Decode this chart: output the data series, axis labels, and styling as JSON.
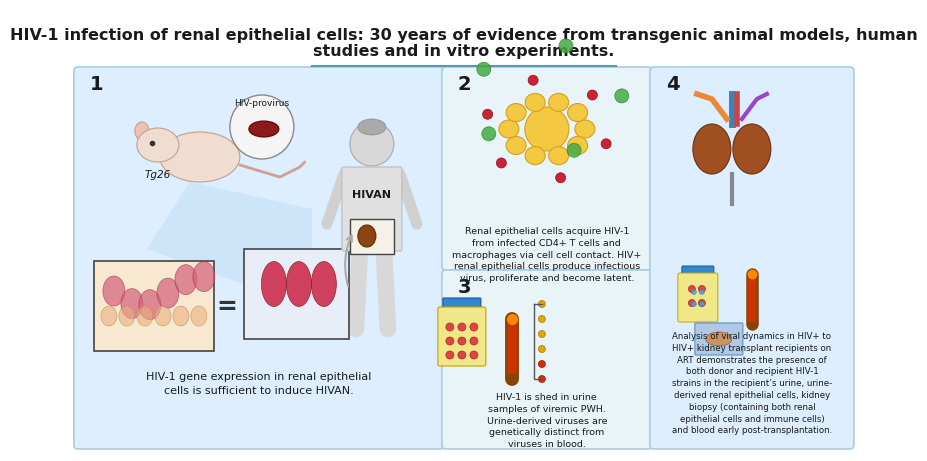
{
  "title_line1": "HIV-1 infection of renal epithelial cells: 30 years of evidence from transgenic animal models, human",
  "title_line2": "studies and in vitro experiments.",
  "title_fontsize": 11.5,
  "title_fontweight": "bold",
  "bg_color": "#ffffff",
  "panel1_bg": "#dceeff",
  "panel2_bg": "#e8f4f8",
  "panel3_bg": "#e8f4f8",
  "panel4_bg": "#dceeff",
  "panel_border_color": "#aacce0",
  "panel1_text": "HIV-1 gene expression in renal epithelial\ncells is sufficient to induce HIVAN.",
  "panel2_text": "Renal epithelial cells acquire HIV-1\nfrom infected CD4+ T cells and\nmacrophages via cell cell contact. HIV+\nrenal epithelial cells produce infectious\nvirus, proliferate and become latent.",
  "panel3_text": "HIV-1 is shed in urine\nsamples of viremic PWH.\nUrine-derived viruses are\ngenetically distinct from\nviruses in blood.",
  "panel4_text": "Analysis of viral dynamics in HIV+ to\nHIV+ kidney transplant recipients on\nART demonstrates the presence of\nboth donor and recipient HIV-1\nstrains in the recipient’s urine, urine-\nderived renal epithelial cells, kidney\nbiopsy (containing both renal\nepithelial cells and immune cells)\nand blood early post-transplantation.",
  "label1": "1",
  "label2": "2",
  "label3": "3",
  "label4": "4",
  "hivan_label": "HIVAN",
  "tg26_label": "Tg26",
  "hiv_provirus_label": "HIV-provirus",
  "text_color": "#1a1a1a",
  "label_color": "#1a1a1a",
  "divider_color": "#5599bb"
}
